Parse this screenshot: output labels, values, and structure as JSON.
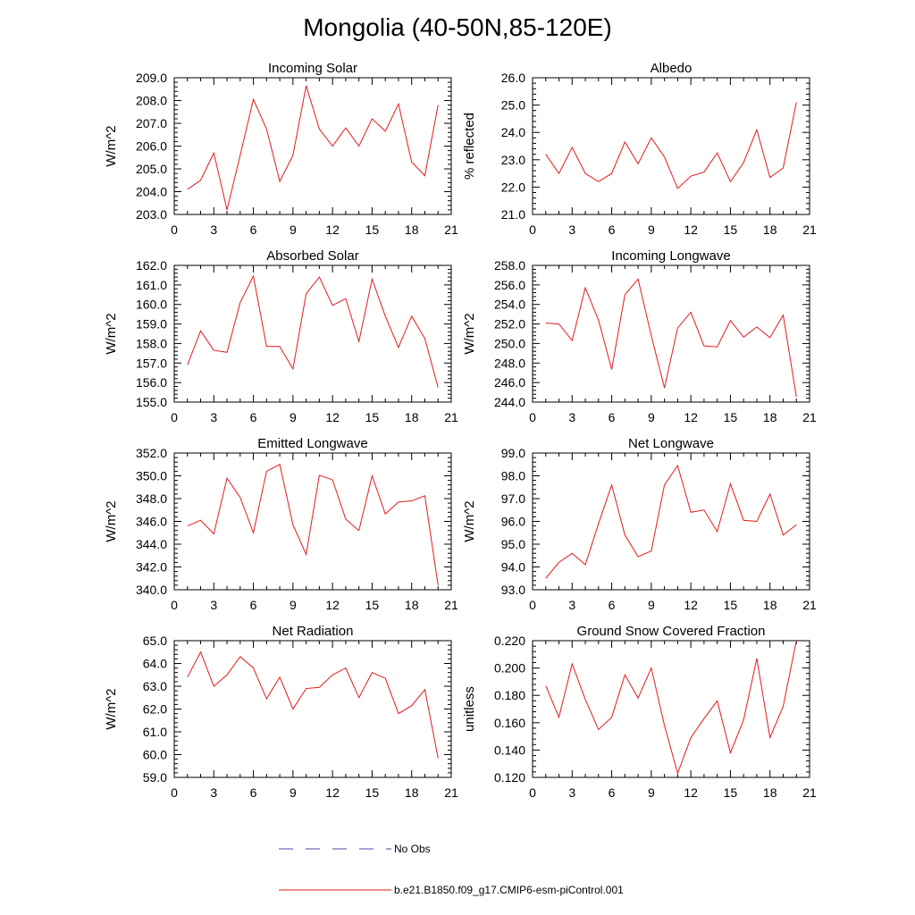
{
  "figure": {
    "title": "Mongolia (40-50N,85-120E)",
    "legend": [
      {
        "label": "No Obs",
        "color": "#4a4aa8",
        "style": "dashed"
      },
      {
        "label": "b.e21.B1850.f09_g17.CMIP6-esm-piControl.001",
        "color": "#e41a1c",
        "style": "solid"
      }
    ]
  },
  "chart_data": [
    {
      "type": "line",
      "title": "Incoming Solar",
      "xlabel": "",
      "ylabel": "W/m^2",
      "xlim": [
        0,
        21
      ],
      "xticks": [
        "0",
        "3",
        "6",
        "9",
        "12",
        "15",
        "18",
        "21"
      ],
      "ylim": [
        203.0,
        209.0
      ],
      "yticks": [
        "203.0",
        "204.0",
        "205.0",
        "206.0",
        "207.0",
        "208.0",
        "209.0"
      ],
      "series": [
        {
          "name": "b.e21.B1850.f09_g17.CMIP6-esm-piControl.001",
          "color": "#e41a1c",
          "x": [
            1,
            2,
            3,
            4,
            5,
            6,
            7,
            8,
            9,
            10,
            11,
            12,
            13,
            14,
            15,
            16,
            17,
            18,
            19,
            20
          ],
          "values": [
            204.1,
            204.5,
            205.7,
            203.2,
            205.6,
            208.05,
            206.75,
            204.45,
            205.6,
            208.65,
            206.75,
            206.0,
            206.8,
            206.0,
            207.2,
            206.65,
            207.85,
            205.3,
            204.7,
            207.8
          ]
        }
      ]
    },
    {
      "type": "line",
      "title": "Albedo",
      "xlabel": "",
      "ylabel": "% reflected",
      "xlim": [
        0,
        21
      ],
      "xticks": [
        "0",
        "3",
        "6",
        "9",
        "12",
        "15",
        "18",
        "21"
      ],
      "ylim": [
        21.0,
        26.0
      ],
      "yticks": [
        "21.0",
        "22.0",
        "23.0",
        "24.0",
        "25.0",
        "26.0"
      ],
      "series": [
        {
          "name": "b.e21.B1850.f09_g17.CMIP6-esm-piControl.001",
          "color": "#e41a1c",
          "x": [
            1,
            2,
            3,
            4,
            5,
            6,
            7,
            8,
            9,
            10,
            11,
            12,
            13,
            14,
            15,
            16,
            17,
            18,
            19,
            20
          ],
          "values": [
            23.2,
            22.5,
            23.45,
            22.5,
            22.2,
            22.5,
            23.65,
            22.85,
            23.8,
            23.1,
            21.95,
            22.4,
            22.55,
            23.25,
            22.2,
            22.9,
            24.1,
            22.35,
            22.7,
            25.1
          ]
        }
      ]
    },
    {
      "type": "line",
      "title": "Absorbed Solar",
      "xlabel": "",
      "ylabel": "W/m^2",
      "xlim": [
        0,
        21
      ],
      "xticks": [
        "0",
        "3",
        "6",
        "9",
        "12",
        "15",
        "18",
        "21"
      ],
      "ylim": [
        155.0,
        162.0
      ],
      "yticks": [
        "155.0",
        "156.0",
        "157.0",
        "158.0",
        "159.0",
        "160.0",
        "161.0",
        "162.0"
      ],
      "series": [
        {
          "name": "b.e21.B1850.f09_g17.CMIP6-esm-piControl.001",
          "color": "#e41a1c",
          "x": [
            1,
            2,
            3,
            4,
            5,
            6,
            7,
            8,
            9,
            10,
            11,
            12,
            13,
            14,
            15,
            16,
            17,
            18,
            19,
            20
          ],
          "values": [
            156.9,
            158.65,
            157.65,
            157.55,
            160.1,
            161.45,
            157.85,
            157.85,
            156.7,
            160.55,
            161.4,
            159.95,
            160.3,
            158.1,
            161.3,
            159.4,
            157.8,
            159.4,
            158.25,
            155.75
          ]
        }
      ]
    },
    {
      "type": "line",
      "title": "Incoming Longwave",
      "xlabel": "",
      "ylabel": "W/m^2",
      "xlim": [
        0,
        21
      ],
      "xticks": [
        "0",
        "3",
        "6",
        "9",
        "12",
        "15",
        "18",
        "21"
      ],
      "ylim": [
        244.0,
        258.0
      ],
      "yticks": [
        "244.0",
        "246.0",
        "248.0",
        "250.0",
        "252.0",
        "254.0",
        "256.0",
        "258.0"
      ],
      "series": [
        {
          "name": "b.e21.B1850.f09_g17.CMIP6-esm-piControl.001",
          "color": "#e41a1c",
          "x": [
            1,
            2,
            3,
            4,
            5,
            6,
            7,
            8,
            9,
            10,
            11,
            12,
            13,
            14,
            15,
            16,
            17,
            18,
            19,
            20
          ],
          "values": [
            252.1,
            252.0,
            250.3,
            255.7,
            252.4,
            247.35,
            255.0,
            256.6,
            250.8,
            245.45,
            251.6,
            253.2,
            249.75,
            249.65,
            252.35,
            250.65,
            251.7,
            250.6,
            252.9,
            244.55
          ]
        }
      ]
    },
    {
      "type": "line",
      "title": "Emitted Longwave",
      "xlabel": "",
      "ylabel": "W/m^2",
      "xlim": [
        0,
        21
      ],
      "xticks": [
        "0",
        "3",
        "6",
        "9",
        "12",
        "15",
        "18",
        "21"
      ],
      "ylim": [
        340.0,
        352.0
      ],
      "yticks": [
        "340.0",
        "342.0",
        "344.0",
        "346.0",
        "348.0",
        "350.0",
        "352.0"
      ],
      "series": [
        {
          "name": "b.e21.B1850.f09_g17.CMIP6-esm-piControl.001",
          "color": "#e41a1c",
          "x": [
            1,
            2,
            3,
            4,
            5,
            6,
            7,
            8,
            9,
            10,
            11,
            12,
            13,
            14,
            15,
            16,
            17,
            18,
            19,
            20
          ],
          "values": [
            345.6,
            346.1,
            344.9,
            349.8,
            348.1,
            345.0,
            350.4,
            351.0,
            345.7,
            343.1,
            350.05,
            349.65,
            346.2,
            345.2,
            350.0,
            346.65,
            347.7,
            347.8,
            348.25,
            340.4
          ]
        }
      ]
    },
    {
      "type": "line",
      "title": "Net Longwave",
      "xlabel": "",
      "ylabel": "W/m^2",
      "xlim": [
        0,
        21
      ],
      "xticks": [
        "0",
        "3",
        "6",
        "9",
        "12",
        "15",
        "18",
        "21"
      ],
      "ylim": [
        93.0,
        99.0
      ],
      "yticks": [
        "93.0",
        "94.0",
        "95.0",
        "96.0",
        "97.0",
        "98.0",
        "99.0"
      ],
      "series": [
        {
          "name": "b.e21.B1850.f09_g17.CMIP6-esm-piControl.001",
          "color": "#e41a1c",
          "x": [
            1,
            2,
            3,
            4,
            5,
            6,
            7,
            8,
            9,
            10,
            11,
            12,
            13,
            14,
            15,
            16,
            17,
            18,
            19,
            20
          ],
          "values": [
            93.5,
            94.2,
            94.6,
            94.1,
            95.9,
            97.6,
            95.4,
            94.45,
            94.7,
            97.6,
            98.45,
            96.4,
            96.5,
            95.55,
            97.65,
            96.05,
            96.0,
            97.2,
            95.4,
            95.85
          ]
        }
      ]
    },
    {
      "type": "line",
      "title": "Net Radiation",
      "xlabel": "",
      "ylabel": "W/m^2",
      "xlim": [
        0,
        21
      ],
      "xticks": [
        "0",
        "3",
        "6",
        "9",
        "12",
        "15",
        "18",
        "21"
      ],
      "ylim": [
        59.0,
        65.0
      ],
      "yticks": [
        "59.0",
        "60.0",
        "61.0",
        "62.0",
        "63.0",
        "64.0",
        "65.0"
      ],
      "series": [
        {
          "name": "b.e21.B1850.f09_g17.CMIP6-esm-piControl.001",
          "color": "#e41a1c",
          "x": [
            1,
            2,
            3,
            4,
            5,
            6,
            7,
            8,
            9,
            10,
            11,
            12,
            13,
            14,
            15,
            16,
            17,
            18,
            19,
            20
          ],
          "values": [
            63.4,
            64.5,
            63.0,
            63.5,
            64.3,
            63.8,
            62.45,
            63.4,
            62.0,
            62.9,
            62.95,
            63.5,
            63.8,
            62.5,
            63.6,
            63.35,
            61.8,
            62.15,
            62.85,
            59.85
          ]
        }
      ]
    },
    {
      "type": "line",
      "title": "Ground Snow Covered Fraction",
      "xlabel": "",
      "ylabel": "unitless",
      "xlim": [
        0,
        21
      ],
      "xticks": [
        "0",
        "3",
        "6",
        "9",
        "12",
        "15",
        "18",
        "21"
      ],
      "ylim": [
        0.12,
        0.22
      ],
      "yticks": [
        "0.120",
        "0.140",
        "0.160",
        "0.180",
        "0.200",
        "0.220"
      ],
      "series": [
        {
          "name": "b.e21.B1850.f09_g17.CMIP6-esm-piControl.001",
          "color": "#e41a1c",
          "x": [
            1,
            2,
            3,
            4,
            5,
            6,
            7,
            8,
            9,
            10,
            11,
            12,
            13,
            14,
            15,
            16,
            17,
            18,
            19,
            20
          ],
          "values": [
            0.187,
            0.164,
            0.203,
            0.177,
            0.155,
            0.164,
            0.195,
            0.178,
            0.2,
            0.158,
            0.123,
            0.149,
            0.163,
            0.176,
            0.138,
            0.162,
            0.207,
            0.149,
            0.172,
            0.22
          ]
        }
      ]
    }
  ]
}
